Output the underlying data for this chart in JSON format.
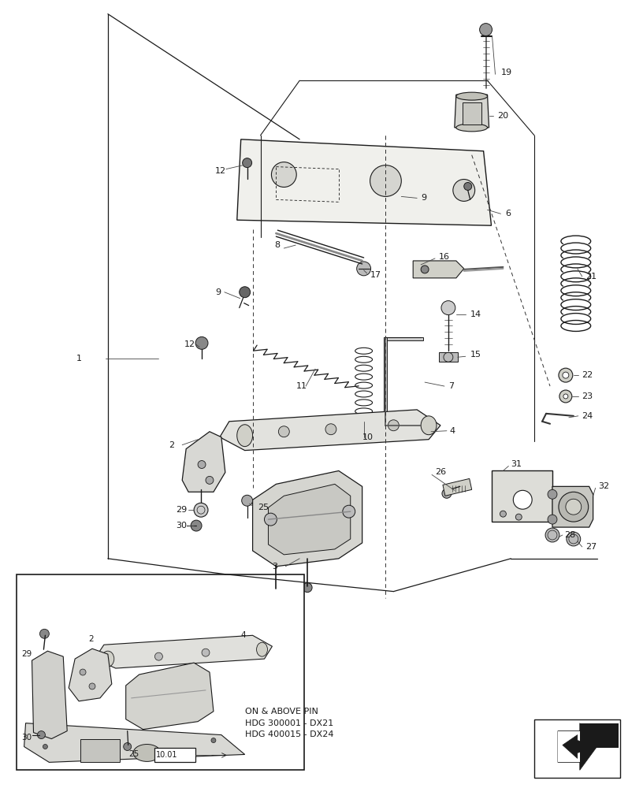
{
  "bg_color": "#ffffff",
  "line_color": "#1a1a1a",
  "annotation_text": "ON & ABOVE PIN\nHDG 300001 - DX21\nHDG 400015 - DX24",
  "annotation_box_label": "10.01"
}
